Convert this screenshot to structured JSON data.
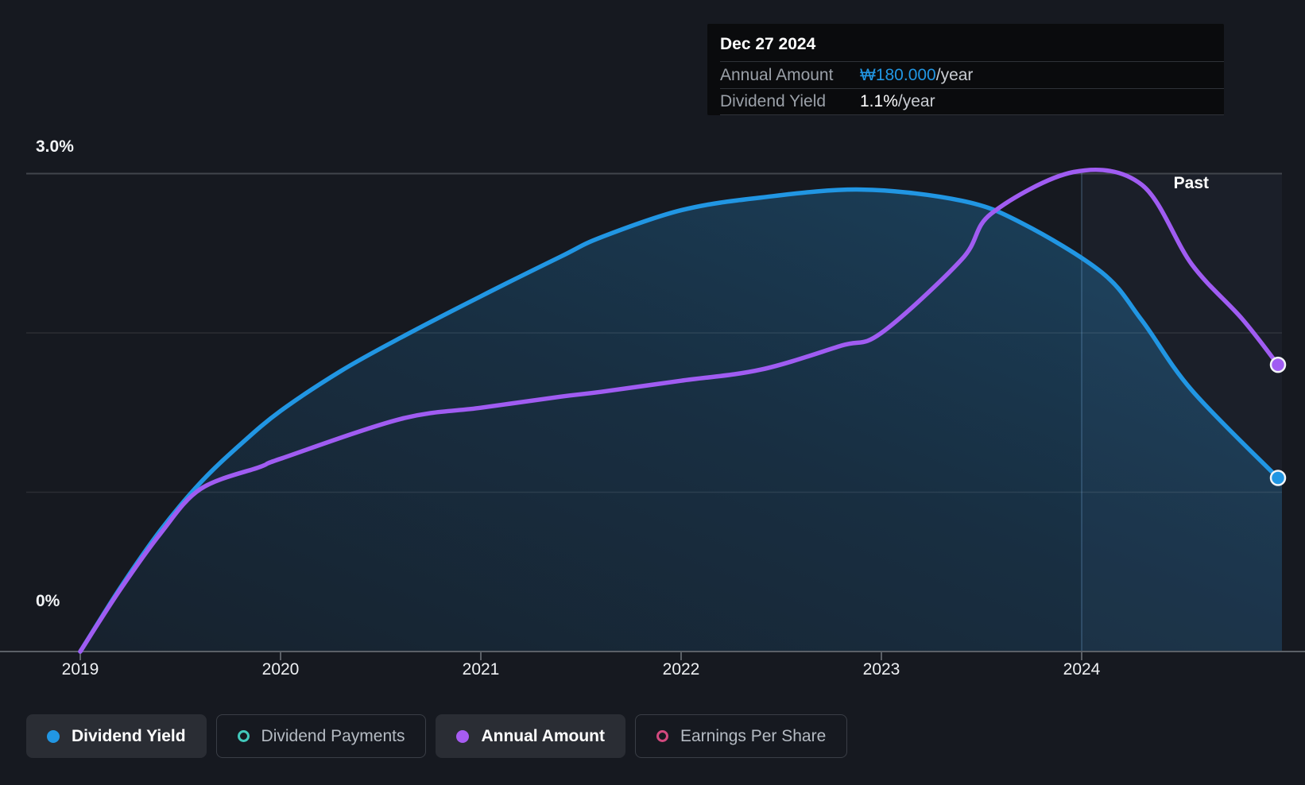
{
  "tooltip": {
    "date": "Dec 27 2024",
    "rows": [
      {
        "label": "Annual Amount",
        "value": "₩180.000",
        "suffix": "/year",
        "color": "#b44ff2"
      },
      {
        "label": "Dividend Yield",
        "value": "1.1%",
        "suffix": "/year",
        "color": "#2196e3"
      }
    ]
  },
  "axis": {
    "y_top_label": "3.0%",
    "y_bottom_label": "0%",
    "x_ticks": [
      "2019",
      "2020",
      "2021",
      "2022",
      "2023",
      "2024"
    ],
    "past_label": "Past"
  },
  "legend": [
    {
      "label": "Dividend Yield",
      "marker": "filled",
      "color": "#2196e3",
      "active": true
    },
    {
      "label": "Dividend Payments",
      "marker": "ring",
      "color": "#42c8bb",
      "active": false
    },
    {
      "label": "Annual Amount",
      "marker": "filled",
      "color": "#a75cf2",
      "active": true
    },
    {
      "label": "Earnings Per Share",
      "marker": "ring",
      "color": "#d2497e",
      "active": false
    }
  ],
  "chart_data": {
    "type": "line",
    "title": "Dividend yield and annual amount history",
    "x_range_years": [
      2019,
      2025
    ],
    "y_range_percent": [
      0,
      3.0
    ],
    "gridlines_percent": [
      3.0,
      2.0,
      1.0,
      0
    ],
    "divider_year": 2024,
    "grid": true,
    "legend_position": "bottom",
    "series": [
      {
        "name": "Dividend Yield",
        "color": "#2196e3",
        "unit": "%",
        "area": true,
        "end_value_label": "1.1%/year",
        "points": [
          [
            2019.0,
            0.0
          ],
          [
            2019.2,
            0.4
          ],
          [
            2019.4,
            0.76
          ],
          [
            2019.6,
            1.06
          ],
          [
            2019.8,
            1.3
          ],
          [
            2020.0,
            1.51
          ],
          [
            2020.3,
            1.76
          ],
          [
            2020.6,
            1.97
          ],
          [
            2021.0,
            2.23
          ],
          [
            2021.4,
            2.48
          ],
          [
            2021.6,
            2.6
          ],
          [
            2022.0,
            2.77
          ],
          [
            2022.4,
            2.85
          ],
          [
            2022.9,
            2.9
          ],
          [
            2023.4,
            2.83
          ],
          [
            2023.7,
            2.69
          ],
          [
            2024.1,
            2.38
          ],
          [
            2024.3,
            2.08
          ],
          [
            2024.55,
            1.64
          ],
          [
            2024.98,
            1.09
          ]
        ]
      },
      {
        "name": "Annual Amount",
        "color": "#a05cf2",
        "unit": "display-scaled (endpoint = ₩180.000/year)",
        "area": false,
        "end_value_label": "₩180.000/year",
        "points": [
          [
            2019.0,
            0.0
          ],
          [
            2019.2,
            0.39
          ],
          [
            2019.4,
            0.74
          ],
          [
            2019.6,
            1.02
          ],
          [
            2019.9,
            1.16
          ],
          [
            2020.0,
            1.21
          ],
          [
            2020.6,
            1.46
          ],
          [
            2021.0,
            1.53
          ],
          [
            2021.4,
            1.6
          ],
          [
            2021.6,
            1.63
          ],
          [
            2022.0,
            1.7
          ],
          [
            2022.4,
            1.77
          ],
          [
            2022.8,
            1.92
          ],
          [
            2023.0,
            2.0
          ],
          [
            2023.4,
            2.46
          ],
          [
            2023.55,
            2.75
          ],
          [
            2023.96,
            3.01
          ],
          [
            2024.3,
            2.93
          ],
          [
            2024.55,
            2.43
          ],
          [
            2024.8,
            2.09
          ],
          [
            2024.98,
            1.8
          ]
        ]
      }
    ]
  }
}
